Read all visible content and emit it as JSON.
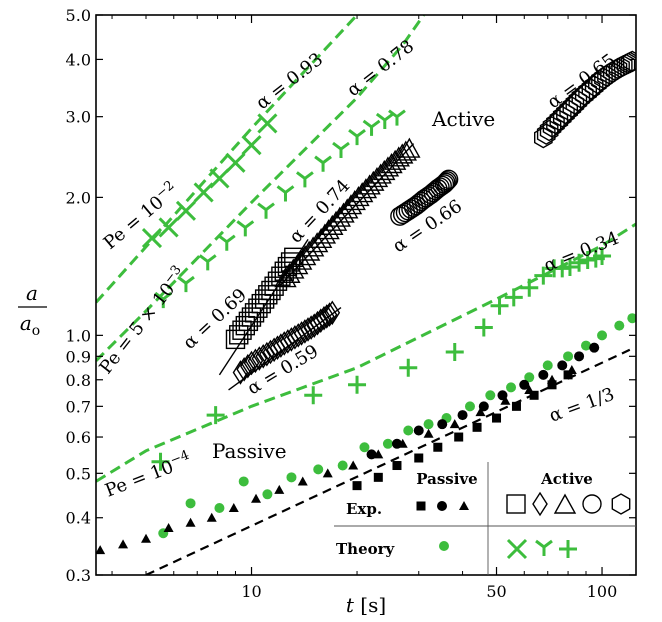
{
  "chart_data": {
    "type": "scatter",
    "title": "",
    "xlabel": "t [s]",
    "ylabel": "a / a_o",
    "xscale": "log",
    "yscale": "log",
    "xlim": [
      3.6,
      125
    ],
    "ylim": [
      0.3,
      5.0
    ],
    "x_ticks": [
      10,
      50,
      100
    ],
    "x_tick_labels": [
      "10",
      "50",
      "100"
    ],
    "y_ticks": [
      0.3,
      0.4,
      0.5,
      0.6,
      0.7,
      0.8,
      0.9,
      1.0,
      2.0,
      3.0,
      4.0,
      5.0
    ],
    "y_tick_labels": [
      "0.3",
      "0.4",
      "0.5",
      "0.6",
      "0.7",
      "0.8",
      "0.9",
      "1.0",
      "2.0",
      "3.0",
      "4.0",
      "5.0"
    ],
    "grid": false,
    "colors": {
      "experiment": "#000000",
      "theory": "#3dbd3d"
    },
    "theory_curves": [
      {
        "label": "Pe = 10^-2",
        "alpha_label": "α = 0.93",
        "style": "dashed-green",
        "points": [
          [
            3.6,
            1.18
          ],
          [
            5,
            1.56
          ],
          [
            10,
            2.83
          ],
          [
            20,
            5.0
          ]
        ]
      },
      {
        "label": "Pe = 5×10^-3",
        "alpha_label": "α = 0.78",
        "style": "dashed-green",
        "points": [
          [
            3.6,
            0.88
          ],
          [
            5,
            1.13
          ],
          [
            10,
            1.95
          ],
          [
            20,
            3.3
          ],
          [
            27,
            4.3
          ],
          [
            31,
            5.0
          ]
        ]
      },
      {
        "label": "Pe = 10^-4",
        "alpha_label": "α = 0.34",
        "style": "dashed-green",
        "points": [
          [
            3.6,
            0.48
          ],
          [
            5,
            0.56
          ],
          [
            10,
            0.7
          ],
          [
            20,
            0.85
          ],
          [
            50,
            1.2
          ],
          [
            100,
            1.57
          ],
          [
            125,
            1.75
          ]
        ]
      }
    ],
    "power_law_reference": {
      "alpha_label": "α = 1/3",
      "style": "dashed-black",
      "points": [
        [
          5,
          0.3
        ],
        [
          120,
          0.93
        ]
      ]
    },
    "series": [
      {
        "name": "Theory passive",
        "marker": "filled-circle",
        "color": "#3dbd3d",
        "x": [
          5.6,
          6.7,
          8.1,
          9.5,
          11.1,
          13.0,
          15.5,
          18.2,
          21.0,
          24.5,
          28.0,
          32.0,
          36.0,
          42.0,
          48.0,
          55.0,
          62.0,
          70.0,
          80.0,
          90.0,
          100.0,
          112.0,
          122.0
        ],
        "y": [
          0.37,
          0.43,
          0.42,
          0.48,
          0.45,
          0.49,
          0.51,
          0.52,
          0.57,
          0.58,
          0.62,
          0.64,
          0.66,
          0.7,
          0.74,
          0.77,
          0.81,
          0.86,
          0.9,
          0.95,
          1.0,
          1.05,
          1.09
        ]
      },
      {
        "name": "Exp. passive (squares)",
        "marker": "filled-square",
        "color": "#000000",
        "x": [
          20,
          23,
          26,
          30,
          34,
          39,
          44,
          50,
          57,
          64,
          72,
          80
        ],
        "y": [
          0.47,
          0.49,
          0.52,
          0.54,
          0.57,
          0.6,
          0.63,
          0.66,
          0.7,
          0.74,
          0.78,
          0.82
        ]
      },
      {
        "name": "Exp. passive (circles)",
        "marker": "filled-circle",
        "color": "#000000",
        "x": [
          22,
          26,
          30,
          35,
          40,
          46,
          52,
          60,
          68,
          77,
          86,
          95
        ],
        "y": [
          0.55,
          0.58,
          0.62,
          0.64,
          0.67,
          0.7,
          0.74,
          0.78,
          0.82,
          0.86,
          0.9,
          0.94
        ]
      },
      {
        "name": "Exp. passive (triangles)",
        "marker": "filled-triangle",
        "color": "#000000",
        "x": [
          3.7,
          4.3,
          5.0,
          5.8,
          6.7,
          7.7,
          8.9,
          10.3,
          12.0,
          14.0,
          16.5,
          19.5,
          23.0,
          27.0,
          32.0,
          38.0,
          45.0,
          53.0,
          62.0,
          72.0,
          82.0
        ],
        "y": [
          0.34,
          0.35,
          0.36,
          0.38,
          0.39,
          0.4,
          0.42,
          0.44,
          0.46,
          0.48,
          0.5,
          0.52,
          0.55,
          0.58,
          0.61,
          0.64,
          0.68,
          0.72,
          0.76,
          0.8,
          0.84
        ]
      },
      {
        "name": "Exp. active (squares)",
        "marker": "open-square",
        "color": "#000000",
        "x": [
          9.0,
          9.6,
          10.2,
          10.9,
          11.6,
          12.4,
          13.2
        ],
        "y": [
          0.98,
          1.05,
          1.12,
          1.2,
          1.28,
          1.38,
          1.48
        ]
      },
      {
        "name": "Exp. active (diamonds)",
        "marker": "open-diamond",
        "color": "#000000",
        "x": [
          9.3,
          10.0,
          10.8,
          11.6,
          12.4,
          13.3,
          14.2,
          15.1,
          16.1,
          17.0
        ],
        "y": [
          0.83,
          0.87,
          0.9,
          0.93,
          0.96,
          0.99,
          1.02,
          1.05,
          1.09,
          1.12
        ]
      },
      {
        "name": "Exp. active (triangles)",
        "marker": "open-triangle",
        "color": "#000000",
        "x": [
          12.5,
          13.5,
          14.6,
          15.8,
          17.0,
          18.3,
          19.7,
          21.2,
          22.8,
          24.5,
          26.3,
          28.2
        ],
        "y": [
          1.33,
          1.42,
          1.52,
          1.62,
          1.73,
          1.84,
          1.96,
          2.08,
          2.2,
          2.32,
          2.44,
          2.55
        ]
      },
      {
        "name": "Exp. active (circles)",
        "marker": "open-circle",
        "color": "#000000",
        "x": [
          26.5,
          28.0,
          29.5,
          31.0,
          32.5,
          34.0,
          35.5,
          36.5
        ],
        "y": [
          1.82,
          1.87,
          1.92,
          1.98,
          2.03,
          2.09,
          2.14,
          2.19
        ]
      },
      {
        "name": "Exp. active (hexagons)",
        "marker": "open-hexagon",
        "color": "#000000",
        "x": [
          68,
          72,
          77,
          82,
          87,
          93,
          99,
          105,
          111,
          117,
          122
        ],
        "y": [
          2.7,
          2.85,
          3.0,
          3.15,
          3.3,
          3.45,
          3.6,
          3.72,
          3.82,
          3.9,
          3.96
        ]
      },
      {
        "name": "Theory active (crosses)",
        "marker": "x",
        "color": "#3dbd3d",
        "x": [
          5.2,
          5.8,
          6.5,
          7.3,
          8.1,
          9.0,
          10.0,
          11.1
        ],
        "y": [
          1.63,
          1.72,
          1.87,
          2.05,
          2.2,
          2.38,
          2.6,
          2.9
        ]
      },
      {
        "name": "Theory active (tri-ups)",
        "marker": "tri-up",
        "color": "#3dbd3d",
        "x": [
          5.6,
          6.5,
          7.5,
          8.5,
          9.6,
          11.0,
          12.5,
          14.2,
          16.0,
          18.0,
          20.0,
          22.0,
          24.0,
          26.0
        ],
        "y": [
          1.2,
          1.3,
          1.45,
          1.6,
          1.72,
          1.88,
          2.05,
          2.2,
          2.38,
          2.55,
          2.72,
          2.85,
          2.95,
          3.0
        ]
      },
      {
        "name": "Theory active (plusses)",
        "marker": "plus",
        "color": "#3dbd3d",
        "x": [
          5.5,
          7.9,
          15.0,
          20.0,
          28.0,
          38.0,
          46.0,
          51.0,
          56.0,
          62.0,
          68.0,
          73.0,
          77.0,
          81.0,
          86.0,
          91.0,
          96.0,
          100.0
        ],
        "y": [
          0.53,
          0.67,
          0.74,
          0.78,
          0.85,
          0.92,
          1.04,
          1.16,
          1.21,
          1.27,
          1.35,
          1.4,
          1.4,
          1.41,
          1.44,
          1.46,
          1.47,
          1.49
        ]
      }
    ],
    "annotations": [
      {
        "id": "alpha_093",
        "text": "α = 0.93"
      },
      {
        "id": "alpha_078",
        "text": "α = 0.78"
      },
      {
        "id": "alpha_065",
        "text": "α = 0.65"
      },
      {
        "id": "alpha_074",
        "text": "α = 0.74"
      },
      {
        "id": "alpha_066",
        "text": "α = 0.66"
      },
      {
        "id": "alpha_069",
        "text": "α = 0.69"
      },
      {
        "id": "alpha_059",
        "text": "α = 0.59"
      },
      {
        "id": "alpha_034",
        "text": "α = 0.34"
      },
      {
        "id": "alpha_13",
        "text": "α = 1/3"
      },
      {
        "id": "active",
        "text": "Active"
      },
      {
        "id": "passive",
        "text": "Passive"
      },
      {
        "id": "pe_1e-2",
        "text": "Pe = 10^−2"
      },
      {
        "id": "pe_5e-3",
        "text": "Pe = 5 × 10^−3"
      },
      {
        "id": "pe_1e-4",
        "text": "Pe = 10^−4"
      }
    ],
    "legend": {
      "placement": "bottom-right",
      "col_headers": [
        "Passive",
        "Active"
      ],
      "row_headers": [
        "Exp.",
        "Theory"
      ]
    }
  }
}
